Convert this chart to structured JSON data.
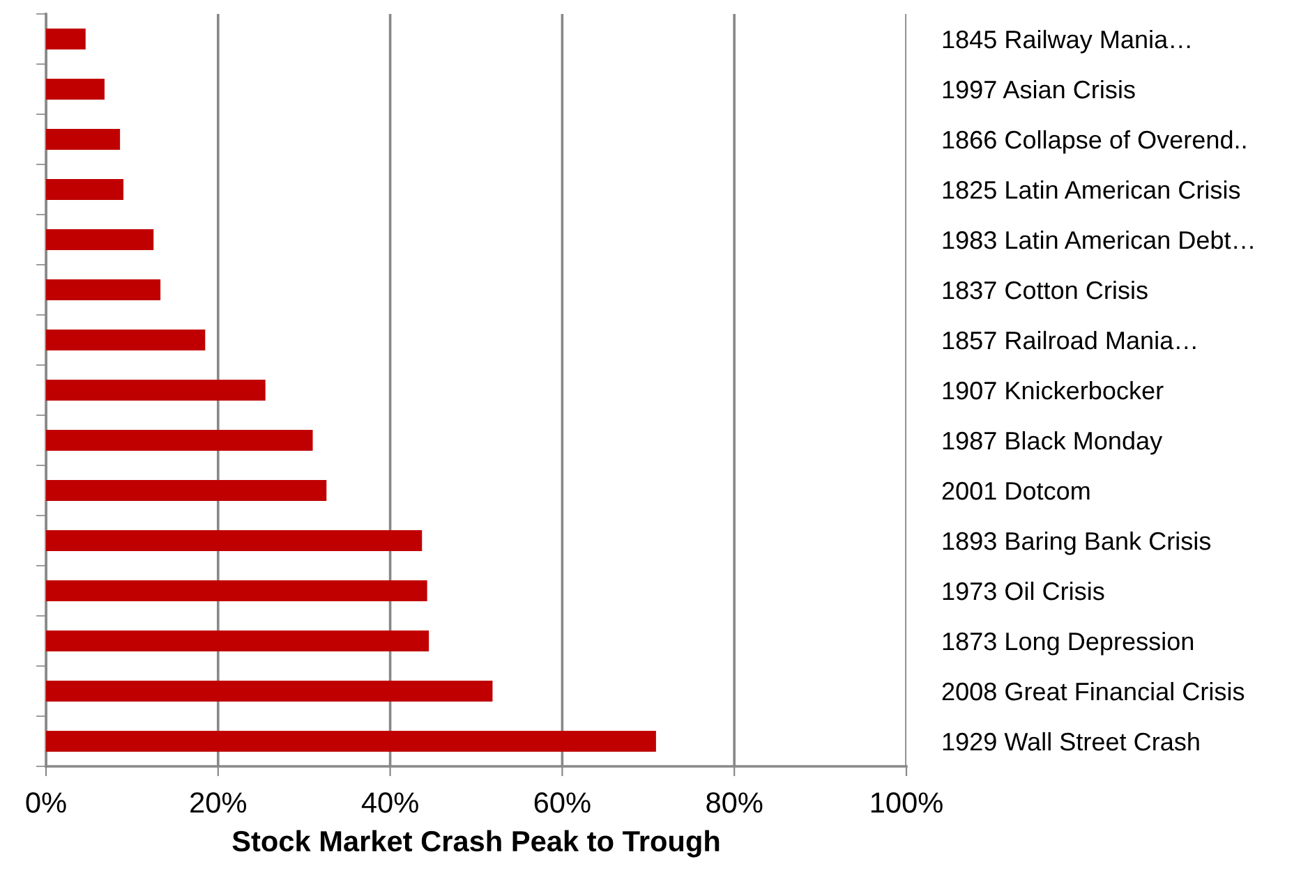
{
  "chart_data": {
    "type": "bar",
    "orientation": "horizontal",
    "xlabel": "Stock Market Crash Peak to Trough",
    "categories": [
      "1845 Railway Mania…",
      "1997 Asian Crisis",
      "1866 Collapse of Overend..",
      "1825 Latin American Crisis",
      "1983 Latin American Debt…",
      "1837 Cotton Crisis",
      "1857 Railroad Mania…",
      "1907 Knickerbocker",
      "1987 Black Monday",
      "2001 Dotcom",
      "1893 Baring Bank Crisis",
      "1973 Oil Crisis",
      "1873 Long Depression",
      "2008 Great Financial Crisis",
      "1929 Wall Street Crash"
    ],
    "values": [
      4.6,
      6.8,
      8.6,
      9.0,
      12.5,
      13.3,
      18.5,
      25.5,
      31.0,
      32.6,
      43.7,
      44.3,
      44.5,
      51.9,
      70.9
    ],
    "color": "#c00000",
    "xlim": [
      0,
      100
    ],
    "xticks": [
      {
        "value": 0,
        "label": "0%"
      },
      {
        "value": 20,
        "label": "20%"
      },
      {
        "value": 40,
        "label": "40%"
      },
      {
        "value": 60,
        "label": "60%"
      },
      {
        "value": 80,
        "label": "80%"
      },
      {
        "value": 100,
        "label": "100%"
      }
    ],
    "grid": "x",
    "legend": false
  }
}
